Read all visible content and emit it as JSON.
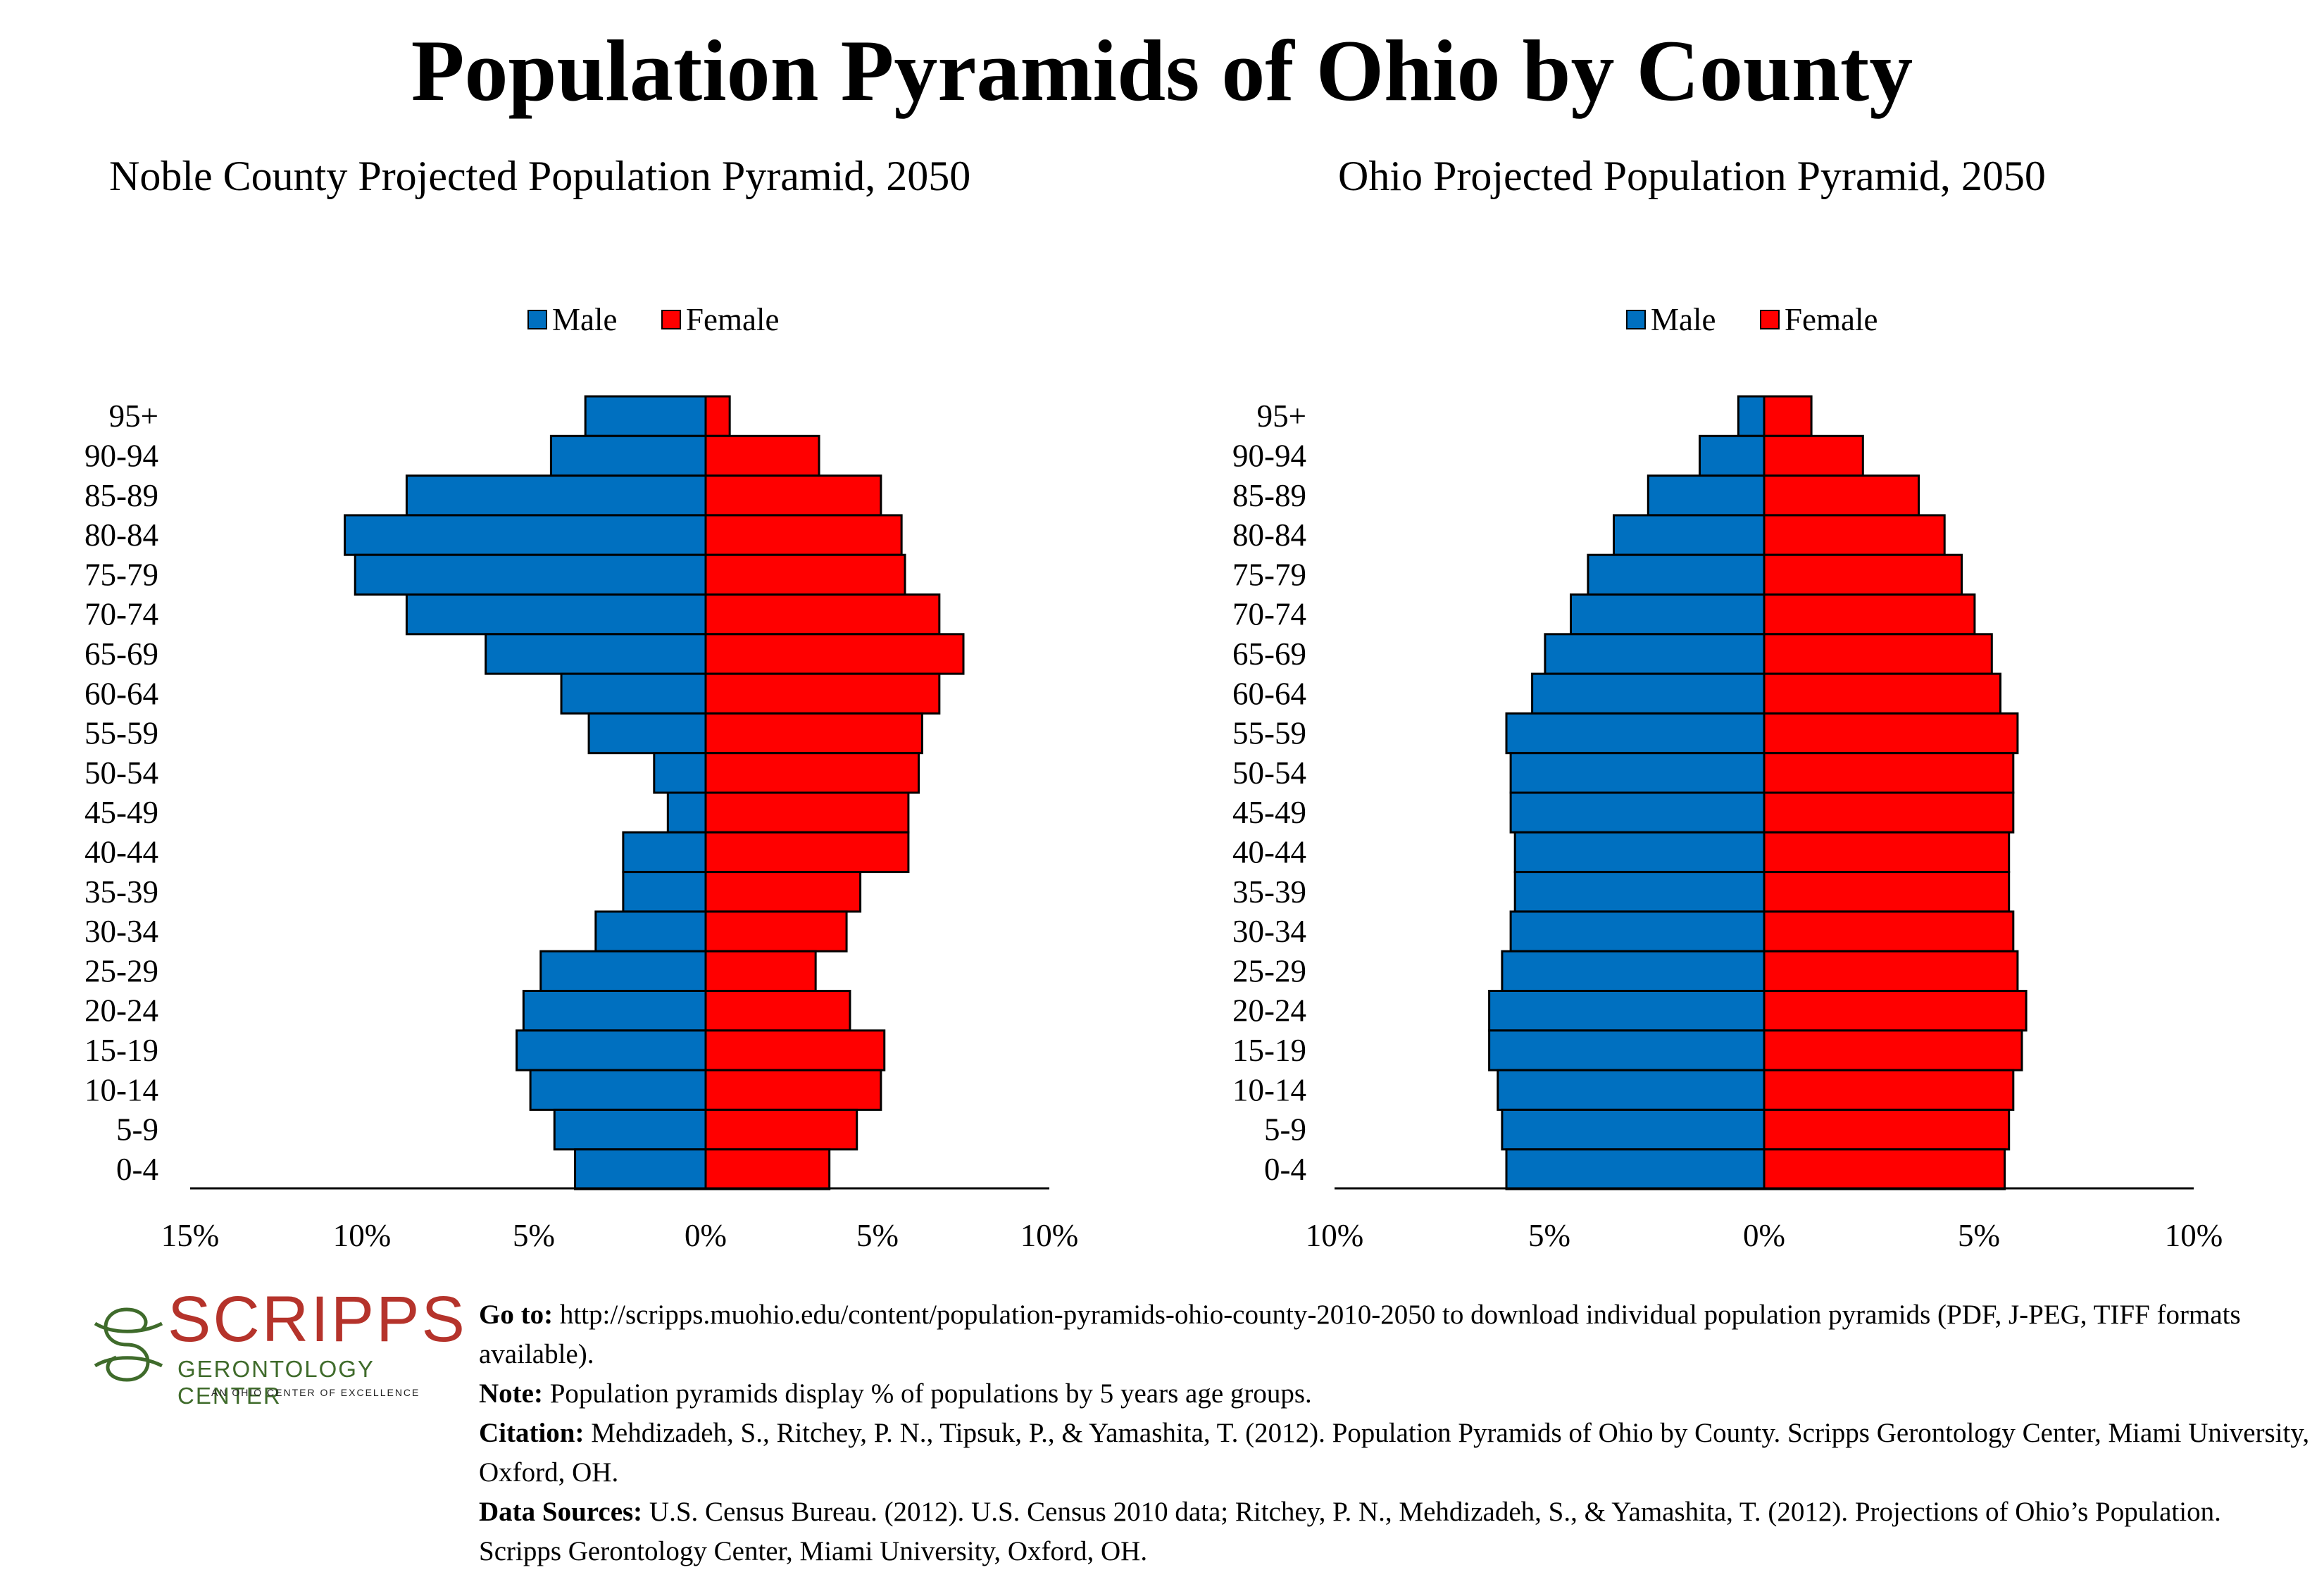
{
  "title": "Population Pyramids of Ohio by County",
  "chart_data": [
    {
      "type": "bar",
      "orientation": "horizontal-pyramid",
      "title": "Noble County Projected Population Pyramid, 2050",
      "categories": [
        "95+",
        "90-94",
        "85-89",
        "80-84",
        "75-79",
        "70-74",
        "65-69",
        "60-64",
        "55-59",
        "50-54",
        "45-49",
        "40-44",
        "35-39",
        "30-34",
        "25-29",
        "20-24",
        "15-19",
        "10-14",
        "5-9",
        "0-4"
      ],
      "series": [
        {
          "name": "Male",
          "color": "#0070C0",
          "values": [
            3.5,
            4.5,
            8.7,
            10.5,
            10.2,
            8.7,
            6.4,
            4.2,
            3.4,
            1.5,
            1.1,
            2.4,
            2.4,
            3.2,
            4.8,
            5.3,
            5.5,
            5.1,
            4.4,
            3.8
          ]
        },
        {
          "name": "Female",
          "color": "#FF0000",
          "values": [
            0.7,
            3.3,
            5.1,
            5.7,
            5.8,
            6.8,
            7.5,
            6.8,
            6.3,
            6.2,
            5.9,
            5.9,
            4.5,
            4.1,
            3.2,
            4.2,
            5.2,
            5.1,
            4.4,
            3.6
          ]
        }
      ],
      "xlim": [
        -15,
        10
      ],
      "ticks": [
        "15%",
        "10%",
        "5%",
        "0%",
        "5%",
        "10%"
      ],
      "legend": "top-center"
    },
    {
      "type": "bar",
      "orientation": "horizontal-pyramid",
      "title": "Ohio Projected Population Pyramid, 2050",
      "categories": [
        "95+",
        "90-94",
        "85-89",
        "80-84",
        "75-79",
        "70-74",
        "65-69",
        "60-64",
        "55-59",
        "50-54",
        "45-49",
        "40-44",
        "35-39",
        "30-34",
        "25-29",
        "20-24",
        "15-19",
        "10-14",
        "5-9",
        "0-4"
      ],
      "series": [
        {
          "name": "Male",
          "color": "#0070C0",
          "values": [
            0.6,
            1.5,
            2.7,
            3.5,
            4.1,
            4.5,
            5.1,
            5.4,
            6.0,
            5.9,
            5.9,
            5.8,
            5.8,
            5.9,
            6.1,
            6.4,
            6.4,
            6.2,
            6.1,
            6.0
          ]
        },
        {
          "name": "Female",
          "color": "#FF0000",
          "values": [
            1.1,
            2.3,
            3.6,
            4.2,
            4.6,
            4.9,
            5.3,
            5.5,
            5.9,
            5.8,
            5.8,
            5.7,
            5.7,
            5.8,
            5.9,
            6.1,
            6.0,
            5.8,
            5.7,
            5.6
          ]
        }
      ],
      "xlim": [
        -10,
        10
      ],
      "ticks": [
        "10%",
        "5%",
        "0%",
        "5%",
        "10%"
      ],
      "legend": "top-center"
    }
  ],
  "logo": {
    "name": "SCRIPPS",
    "sub": "GERONTOLOGY CENTER",
    "tagline": "AN OHIO CENTER OF EXCELLENCE",
    "color_red": "#b5332b",
    "color_green": "#3f6b2b"
  },
  "footer": {
    "goto_label": "Go to:",
    "goto_text": "http://scripps.muohio.edu/content/population-pyramids-ohio-county-2010-2050 to download individual population pyramids (PDF, J-PEG, TIFF formats available).",
    "note_label": "Note:",
    "note_text": "Population pyramids display % of populations by 5 years age groups.",
    "citation_label": "Citation:",
    "citation_text": "Mehdizadeh, S., Ritchey, P. N., Tipsuk, P., & Yamashita, T. (2012). Population Pyramids of Ohio by County. Scripps Gerontology Center, Miami University, Oxford, OH.",
    "sources_label": "Data Sources:",
    "sources_text": "U.S. Census Bureau. (2012). U.S. Census 2010 data; Ritchey, P. N., Mehdizadeh, S., & Yamashita, T. (2012). Projections of Ohio’s Population. Scripps Gerontology Center, Miami University, Oxford, OH."
  }
}
